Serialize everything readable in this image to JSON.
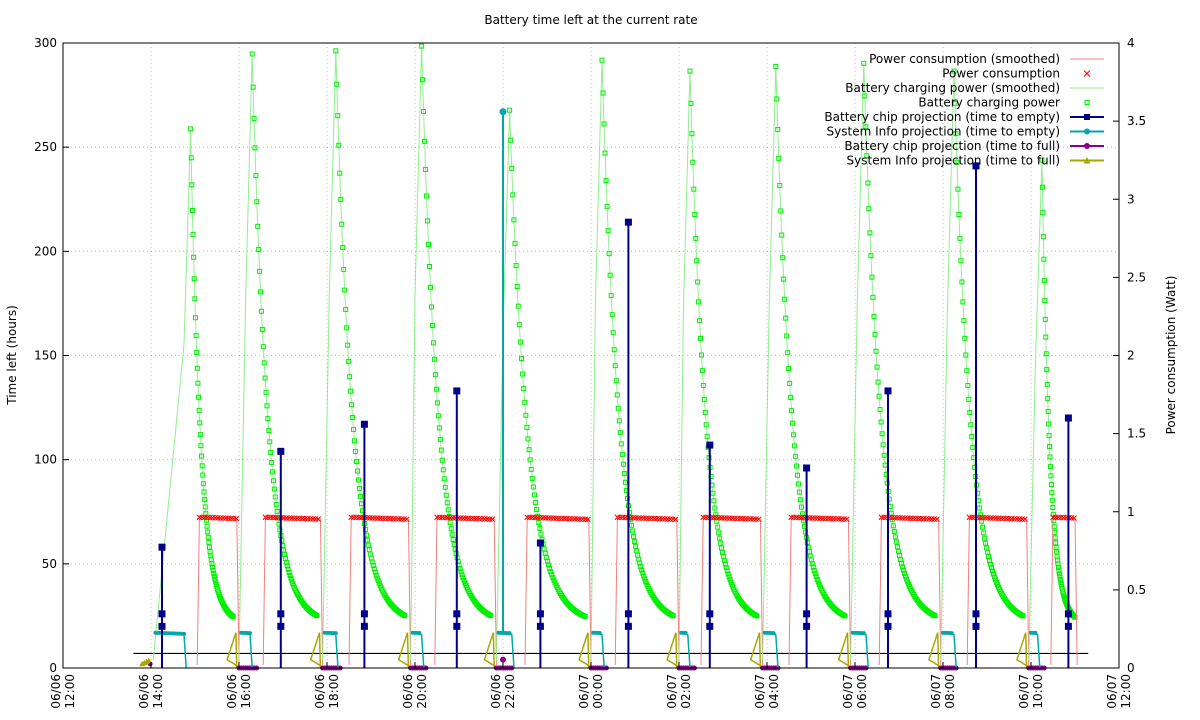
{
  "chart_data": {
    "type": "line",
    "title": "Battery time left at the current rate",
    "ylabel": "Time left (hours)",
    "y2label": "Power consumption (Watt)",
    "ylim": [
      0,
      300
    ],
    "y2lim": [
      0,
      4
    ],
    "xlim_hours": [
      0,
      24
    ],
    "grid": true,
    "legend_position": "top-right",
    "x_ticks": [
      {
        "h": 0,
        "date": "06/06",
        "time": "12:00"
      },
      {
        "h": 2,
        "date": "06/06",
        "time": "14:00"
      },
      {
        "h": 4,
        "date": "06/06",
        "time": "16:00"
      },
      {
        "h": 6,
        "date": "06/06",
        "time": "18:00"
      },
      {
        "h": 8,
        "date": "06/06",
        "time": "20:00"
      },
      {
        "h": 10,
        "date": "06/06",
        "time": "22:00"
      },
      {
        "h": 12,
        "date": "06/07",
        "time": "00:00"
      },
      {
        "h": 14,
        "date": "06/07",
        "time": "02:00"
      },
      {
        "h": 16,
        "date": "06/07",
        "time": "04:00"
      },
      {
        "h": 18,
        "date": "06/07",
        "time": "06:00"
      },
      {
        "h": 20,
        "date": "06/07",
        "time": "08:00"
      },
      {
        "h": 22,
        "date": "06/07",
        "time": "10:00"
      },
      {
        "h": 24,
        "date": "06/07",
        "time": "12:00"
      }
    ],
    "y_ticks": [
      "0",
      "50",
      "100",
      "150",
      "200",
      "250",
      "300"
    ],
    "y_tick_values": [
      0,
      50,
      100,
      150,
      200,
      250,
      300
    ],
    "y2_ticks": [
      "0",
      "0.5",
      "1",
      "1.5",
      "2",
      "2.5",
      "3",
      "3.5",
      "4"
    ],
    "y2_tick_values": [
      0,
      0.5,
      1,
      1.5,
      2,
      2.5,
      3,
      3.5,
      4
    ],
    "legend": [
      {
        "label": "Power consumption (smoothed)",
        "color": "#f08080",
        "style": "line"
      },
      {
        "label": "Power consumption",
        "color": "#ff0000",
        "style": "cross"
      },
      {
        "label": "Battery charging power (smoothed)",
        "color": "#90ee90",
        "style": "line"
      },
      {
        "label": "Battery charging power",
        "color": "#00ee00",
        "style": "square-open"
      },
      {
        "label": "Battery chip projection (time to empty)",
        "color": "#00008b",
        "style": "line-square"
      },
      {
        "label": "System Info projection (time to empty)",
        "color": "#00a8a8",
        "style": "line-circle"
      },
      {
        "label": "Battery chip projection (time to full)",
        "color": "#8b008b",
        "style": "line-circle"
      },
      {
        "label": "System Info projection (time to full)",
        "color": "#a8a800",
        "style": "line-triangle"
      }
    ],
    "cycles": [
      {
        "chg_start": 2.0,
        "peak_t": 2.9,
        "peak_w": 3.45,
        "dis_start": 3.1,
        "dis_end": 3.95,
        "chip_spike": 58,
        "chip_spike_t": 2.25
      },
      {
        "chg_start": 3.95,
        "peak_t": 4.3,
        "peak_w": 3.93,
        "dis_start": 4.6,
        "dis_end": 5.85,
        "chip_spike": 104,
        "chip_spike_t": 4.95
      },
      {
        "chg_start": 5.85,
        "peak_t": 6.2,
        "peak_w": 3.95,
        "dis_start": 6.55,
        "dis_end": 7.85,
        "chip_spike": 117,
        "chip_spike_t": 6.85
      },
      {
        "chg_start": 7.85,
        "peak_t": 8.15,
        "peak_w": 3.98,
        "dis_start": 8.5,
        "dis_end": 9.8,
        "chip_spike": 133,
        "chip_spike_t": 8.95
      },
      {
        "chg_start": 9.8,
        "peak_t": 10.15,
        "peak_w": 3.57,
        "dis_start": 10.55,
        "dis_end": 11.95,
        "chip_spike": 60,
        "chip_spike_t": 10.85
      },
      {
        "chg_start": 11.95,
        "peak_t": 12.25,
        "peak_w": 3.89,
        "dis_start": 12.6,
        "dis_end": 13.95,
        "chip_spike": 214,
        "chip_spike_t": 12.85
      },
      {
        "chg_start": 13.95,
        "peak_t": 14.25,
        "peak_w": 3.82,
        "dis_start": 14.55,
        "dis_end": 15.85,
        "chip_spike": 107,
        "chip_spike_t": 14.7
      },
      {
        "chg_start": 15.85,
        "peak_t": 16.2,
        "peak_w": 3.85,
        "dis_start": 16.55,
        "dis_end": 17.85,
        "chip_spike": 96,
        "chip_spike_t": 16.9
      },
      {
        "chg_start": 17.85,
        "peak_t": 18.2,
        "peak_w": 3.87,
        "dis_start": 18.6,
        "dis_end": 19.9,
        "chip_spike": 133,
        "chip_spike_t": 18.75
      },
      {
        "chg_start": 19.9,
        "peak_t": 20.25,
        "peak_w": 3.82,
        "dis_start": 20.6,
        "dis_end": 21.9,
        "chip_spike": 241,
        "chip_spike_t": 20.75
      },
      {
        "chg_start": 21.9,
        "peak_t": 22.25,
        "peak_w": 3.25,
        "dis_start": 22.5,
        "dis_end": 23.0,
        "chip_spike": 120,
        "chip_spike_t": 22.85
      }
    ],
    "sysinfo_spike": {
      "t": 10.0,
      "value": 267
    },
    "discharge_consumption_w": 0.965,
    "discharge_time_left_h": 17,
    "reference_line_h": 7
  }
}
